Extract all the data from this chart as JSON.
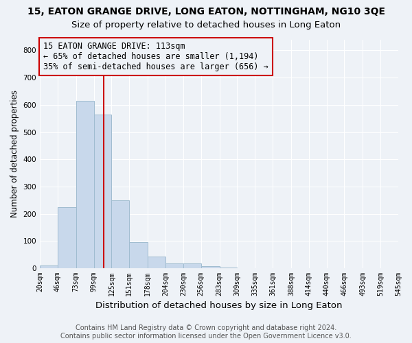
{
  "title": "15, EATON GRANGE DRIVE, LONG EATON, NOTTINGHAM, NG10 3QE",
  "subtitle": "Size of property relative to detached houses in Long Eaton",
  "xlabel": "Distribution of detached houses by size in Long Eaton",
  "ylabel": "Number of detached properties",
  "bar_color": "#c8d8eb",
  "bar_edgecolor": "#a0bcd0",
  "bin_edges": [
    20,
    46,
    73,
    99,
    125,
    151,
    178,
    204,
    230,
    256,
    283,
    309,
    335,
    361,
    388,
    414,
    440,
    466,
    493,
    519,
    545
  ],
  "bar_heights": [
    10,
    225,
    615,
    565,
    250,
    95,
    42,
    18,
    18,
    8,
    2,
    0,
    0,
    0,
    0,
    0,
    0,
    0,
    0,
    0
  ],
  "tick_labels": [
    "20sqm",
    "46sqm",
    "73sqm",
    "99sqm",
    "125sqm",
    "151sqm",
    "178sqm",
    "204sqm",
    "230sqm",
    "256sqm",
    "283sqm",
    "309sqm",
    "335sqm",
    "361sqm",
    "388sqm",
    "414sqm",
    "440sqm",
    "466sqm",
    "493sqm",
    "519sqm",
    "545sqm"
  ],
  "vline_x": 113,
  "vline_color": "#cc0000",
  "annotation_line1": "15 EATON GRANGE DRIVE: 113sqm",
  "annotation_line2": "← 65% of detached houses are smaller (1,194)",
  "annotation_line3": "35% of semi-detached houses are larger (656) →",
  "ylim": [
    0,
    840
  ],
  "yticks": [
    0,
    100,
    200,
    300,
    400,
    500,
    600,
    700,
    800
  ],
  "footer_line1": "Contains HM Land Registry data © Crown copyright and database right 2024.",
  "footer_line2": "Contains public sector information licensed under the Open Government Licence v3.0.",
  "background_color": "#eef2f7",
  "grid_color": "#ffffff",
  "title_fontsize": 10,
  "subtitle_fontsize": 9.5,
  "xlabel_fontsize": 9.5,
  "ylabel_fontsize": 8.5,
  "tick_fontsize": 7,
  "footer_fontsize": 7,
  "annotation_fontsize": 8.5
}
